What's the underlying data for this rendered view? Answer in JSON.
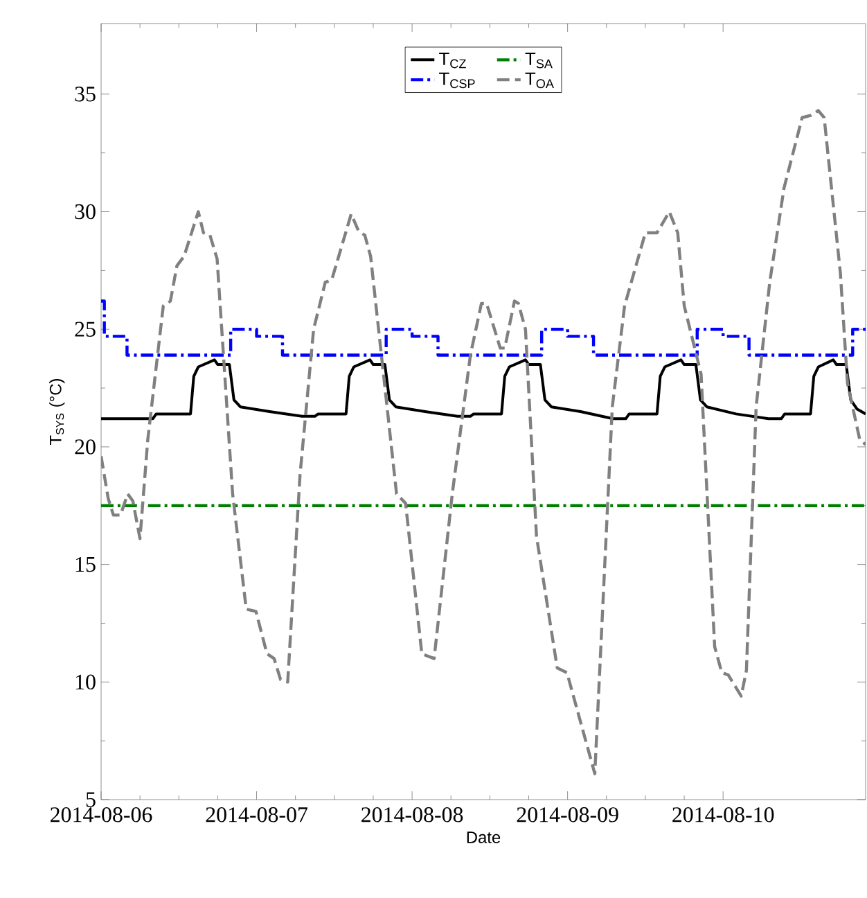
{
  "chart_data": {
    "type": "line",
    "xlabel": "Date",
    "ylabel": "T$_{SYS}$ (°C)",
    "xlim": [
      "2014-08-06T00:00",
      "2014-08-10T22:00"
    ],
    "ylim": [
      5,
      38
    ],
    "xticks": [
      "2014-08-06",
      "2014-08-07",
      "2014-08-08",
      "2014-08-09",
      "2014-08-10"
    ],
    "yticks": [
      5,
      10,
      15,
      20,
      25,
      30,
      35
    ],
    "grid": false,
    "legend": "top",
    "series": [
      {
        "name": "T$_{CZ}$",
        "color": "#000000",
        "line_style": "solid",
        "x": [
          "2014-08-06T00:00",
          "2014-08-06T08:00",
          "2014-08-06T08:30",
          "2014-08-06T13:48",
          "2014-08-06T14:18",
          "2014-08-06T15:00",
          "2014-08-06T17:30",
          "2014-08-06T18:00",
          "2014-08-06T19:48",
          "2014-08-06T20:30",
          "2014-08-06T21:30",
          "2014-08-07T02:00",
          "2014-08-07T07:00",
          "2014-08-07T09:00",
          "2014-08-07T09:30",
          "2014-08-07T13:48",
          "2014-08-07T14:18",
          "2014-08-07T15:00",
          "2014-08-07T17:30",
          "2014-08-07T18:00",
          "2014-08-07T19:48",
          "2014-08-07T20:30",
          "2014-08-07T21:30",
          "2014-08-08T02:00",
          "2014-08-08T07:00",
          "2014-08-08T09:00",
          "2014-08-08T09:30",
          "2014-08-08T13:48",
          "2014-08-08T14:18",
          "2014-08-08T15:00",
          "2014-08-08T17:30",
          "2014-08-08T18:00",
          "2014-08-08T19:48",
          "2014-08-08T20:30",
          "2014-08-08T21:30",
          "2014-08-09T02:00",
          "2014-08-09T07:00",
          "2014-08-09T09:00",
          "2014-08-09T09:30",
          "2014-08-09T13:48",
          "2014-08-09T14:18",
          "2014-08-09T15:00",
          "2014-08-09T17:30",
          "2014-08-09T18:00",
          "2014-08-09T19:48",
          "2014-08-09T20:30",
          "2014-08-09T21:30",
          "2014-08-10T02:00",
          "2014-08-10T07:00",
          "2014-08-10T09:00",
          "2014-08-10T09:30",
          "2014-08-10T13:30",
          "2014-08-10T14:00",
          "2014-08-10T14:42",
          "2014-08-10T17:00",
          "2014-08-10T17:30",
          "2014-08-10T19:00",
          "2014-08-10T19:42",
          "2014-08-10T20:42",
          "2014-08-10T22:00"
        ],
        "values": [
          21.2,
          21.2,
          21.4,
          21.4,
          23.0,
          23.4,
          23.7,
          23.5,
          23.5,
          22.0,
          21.7,
          21.5,
          21.3,
          21.3,
          21.4,
          21.4,
          23.0,
          23.4,
          23.7,
          23.5,
          23.5,
          22.0,
          21.7,
          21.5,
          21.3,
          21.3,
          21.4,
          21.4,
          23.0,
          23.4,
          23.7,
          23.5,
          23.5,
          22.0,
          21.7,
          21.5,
          21.2,
          21.2,
          21.4,
          21.4,
          23.0,
          23.4,
          23.7,
          23.5,
          23.5,
          22.0,
          21.7,
          21.4,
          21.2,
          21.2,
          21.4,
          21.4,
          23.0,
          23.4,
          23.7,
          23.5,
          23.5,
          22.0,
          21.6,
          21.4
        ]
      },
      {
        "name": "T$_{SA}$",
        "color": "#008000",
        "line_style": "dashdot",
        "x": [
          "2014-08-06T00:00",
          "2014-08-10T22:00"
        ],
        "values": [
          17.5,
          17.5
        ]
      },
      {
        "name": "T$_{CSP}$",
        "color": "#0000ff",
        "line_style": "dashdot",
        "type": "step",
        "x": [
          "2014-08-06T00:00",
          "2014-08-06T00:30",
          "2014-08-06T04:00",
          "2014-08-06T20:00",
          "2014-08-07T00:00",
          "2014-08-07T04:00",
          "2014-08-07T20:00",
          "2014-08-08T00:00",
          "2014-08-08T04:00",
          "2014-08-08T20:00",
          "2014-08-09T00:00",
          "2014-08-09T04:00",
          "2014-08-09T20:00",
          "2014-08-10T00:00",
          "2014-08-10T04:00",
          "2014-08-10T20:00",
          "2014-08-10T22:00"
        ],
        "values": [
          26.2,
          24.7,
          23.9,
          25.0,
          24.7,
          23.9,
          25.0,
          24.7,
          23.9,
          25.0,
          24.7,
          23.9,
          25.0,
          24.7,
          23.9,
          25.0,
          25.0
        ]
      },
      {
        "name": "T$_{OA}$",
        "color": "#808080",
        "line_style": "dashed",
        "x": [
          "2014-08-06T00:00",
          "2014-08-06T01:06",
          "2014-08-06T01:54",
          "2014-08-06T03:00",
          "2014-08-06T04:06",
          "2014-08-06T04:54",
          "2014-08-06T06:00",
          "2014-08-06T07:12",
          "2014-08-06T09:36",
          "2014-08-06T10:42",
          "2014-08-06T11:42",
          "2014-08-06T12:48",
          "2014-08-06T15:00",
          "2014-08-06T15:48",
          "2014-08-06T16:48",
          "2014-08-06T17:54",
          "2014-08-06T20:18",
          "2014-08-06T22:24",
          "2014-08-06T23:54",
          "2014-08-07T01:36",
          "2014-08-07T02:42",
          "2014-08-07T03:42",
          "2014-08-07T04:48",
          "2014-08-07T06:42",
          "2014-08-07T08:48",
          "2014-08-07T10:36",
          "2014-08-07T11:36",
          "2014-08-07T14:36",
          "2014-08-07T15:42",
          "2014-08-07T16:42",
          "2014-08-07T17:36",
          "2014-08-07T21:36",
          "2014-08-07T23:00",
          "2014-08-08T01:30",
          "2014-08-08T03:24",
          "2014-08-08T06:12",
          "2014-08-08T09:00",
          "2014-08-08T10:42",
          "2014-08-08T11:30",
          "2014-08-08T13:36",
          "2014-08-08T14:18",
          "2014-08-08T15:48",
          "2014-08-08T16:24",
          "2014-08-08T17:30",
          "2014-08-08T19:12",
          "2014-08-08T22:24",
          "2014-08-08T23:54",
          "2014-08-09T04:12",
          "2014-08-09T06:54",
          "2014-08-09T08:48",
          "2014-08-09T12:00",
          "2014-08-09T13:48",
          "2014-08-09T15:42",
          "2014-08-09T17:00",
          "2014-08-09T18:00",
          "2014-08-09T20:36",
          "2014-08-09T22:42",
          "2014-08-09T23:48",
          "2014-08-10T00:48",
          "2014-08-10T02:48",
          "2014-08-10T03:36",
          "2014-08-10T05:06",
          "2014-08-10T07:12",
          "2014-08-10T09:24",
          "2014-08-10T12:12",
          "2014-08-10T13:36",
          "2014-08-10T14:42",
          "2014-08-10T15:36",
          "2014-08-10T18:06",
          "2014-08-10T19:12",
          "2014-08-10T21:06",
          "2014-08-10T22:00"
        ],
        "values": [
          19.6,
          17.8,
          17.1,
          17.1,
          18.0,
          17.7,
          16.1,
          20.3,
          26.0,
          26.2,
          27.7,
          28.1,
          30.0,
          29.1,
          29.0,
          28.0,
          18.0,
          13.1,
          13.0,
          11.2,
          11.0,
          10.1,
          10.0,
          18.8,
          25.0,
          27.0,
          27.1,
          29.9,
          29.2,
          29.0,
          28.1,
          18.0,
          17.6,
          11.2,
          11.0,
          18.0,
          23.9,
          26.1,
          26.1,
          24.2,
          24.2,
          26.2,
          26.1,
          25.0,
          16.2,
          10.6,
          10.4,
          6.1,
          21.7,
          26.0,
          29.1,
          29.1,
          30.0,
          29.1,
          26.0,
          23.1,
          11.5,
          10.4,
          10.3,
          9.4,
          10.5,
          21.7,
          27.0,
          31.0,
          34.0,
          34.1,
          34.3,
          34.0,
          27.4,
          22.7,
          20.3,
          20.1
        ]
      }
    ]
  }
}
